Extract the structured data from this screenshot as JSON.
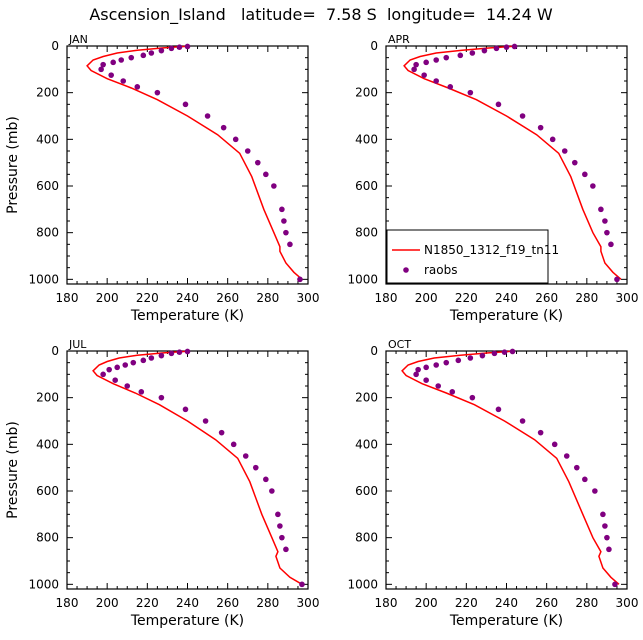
{
  "figure_title": "Ascension_Island   latitude=  7.58 S  longitude=  14.24 W",
  "legend": {
    "model_label": "N1850_1312_f19_tn11",
    "obs_label": "raobs"
  },
  "colors": {
    "model_line": "#ff0000",
    "obs_marker": "#800080",
    "axes": "#000000"
  },
  "chart_data": [
    {
      "type": "line",
      "panel_label": "JAN",
      "xlabel": "Temperature (K)",
      "ylabel": "Pressure (mb)",
      "xlim": [
        180,
        300
      ],
      "ylim": [
        1020,
        0
      ],
      "x_ticks": [
        180,
        200,
        220,
        240,
        260,
        280,
        300
      ],
      "y_ticks": [
        0,
        200,
        400,
        600,
        800,
        1000
      ],
      "model": {
        "name": "N1850_1312_f19_tn11",
        "x": [
          240,
          228,
          215,
          205,
          198,
          193,
          190,
          192,
          200,
          212,
          225,
          240,
          255,
          266,
          272,
          278,
          283,
          286,
          286,
          289,
          293,
          297
        ],
        "y": [
          1,
          8,
          18,
          30,
          45,
          60,
          85,
          105,
          140,
          180,
          230,
          300,
          380,
          460,
          560,
          700,
          800,
          860,
          880,
          930,
          970,
          1000
        ]
      },
      "obs": {
        "name": "raobs",
        "x": [
          240,
          236,
          232,
          227,
          222,
          218,
          212,
          207,
          203,
          198,
          197,
          202,
          208,
          215,
          225,
          239,
          250,
          258,
          264,
          270,
          275,
          279,
          283,
          287,
          288,
          289,
          291,
          296
        ],
        "y": [
          2,
          5,
          10,
          20,
          30,
          40,
          50,
          60,
          70,
          80,
          100,
          125,
          150,
          175,
          200,
          250,
          300,
          350,
          400,
          450,
          500,
          550,
          600,
          700,
          750,
          800,
          850,
          1000
        ]
      }
    },
    {
      "type": "line",
      "panel_label": "APR",
      "xlabel": "Temperature (K)",
      "ylabel": "",
      "xlim": [
        180,
        300
      ],
      "ylim": [
        1020,
        0
      ],
      "x_ticks": [
        180,
        200,
        220,
        240,
        260,
        280,
        300
      ],
      "y_ticks": [
        0,
        200,
        400,
        600,
        800,
        1000
      ],
      "model": {
        "name": "N1850_1312_f19_tn11",
        "x": [
          244,
          232,
          218,
          205,
          197,
          192,
          189,
          191,
          199,
          211,
          225,
          240,
          255,
          266,
          272,
          278,
          283,
          287,
          287,
          289,
          293,
          297
        ],
        "y": [
          1,
          8,
          18,
          30,
          45,
          60,
          85,
          105,
          140,
          180,
          230,
          300,
          380,
          460,
          560,
          700,
          800,
          860,
          880,
          930,
          970,
          1000
        ]
      },
      "obs": {
        "name": "raobs",
        "x": [
          244,
          240,
          235,
          229,
          223,
          217,
          210,
          205,
          200,
          195,
          194,
          199,
          205,
          212,
          222,
          236,
          248,
          257,
          263,
          269,
          274,
          279,
          283,
          287,
          289,
          290,
          292,
          295
        ],
        "y": [
          2,
          5,
          10,
          20,
          30,
          40,
          50,
          60,
          70,
          80,
          100,
          125,
          150,
          175,
          200,
          250,
          300,
          350,
          400,
          450,
          500,
          550,
          600,
          700,
          750,
          800,
          850,
          1000
        ]
      }
    },
    {
      "type": "line",
      "panel_label": "JUL",
      "xlabel": "Temperature (K)",
      "ylabel": "Pressure (mb)",
      "xlim": [
        180,
        300
      ],
      "ylim": [
        1020,
        0
      ],
      "x_ticks": [
        180,
        200,
        220,
        240,
        260,
        280,
        300
      ],
      "y_ticks": [
        0,
        200,
        400,
        600,
        800,
        1000
      ],
      "model": {
        "name": "N1850_1312_f19_tn11",
        "x": [
          240,
          228,
          215,
          206,
          200,
          196,
          193,
          195,
          203,
          214,
          226,
          240,
          254,
          265,
          271,
          277,
          282,
          285,
          284,
          286,
          291,
          297
        ],
        "y": [
          1,
          8,
          18,
          30,
          45,
          60,
          85,
          105,
          140,
          180,
          230,
          300,
          380,
          460,
          560,
          700,
          800,
          860,
          880,
          930,
          970,
          1000
        ]
      },
      "obs": {
        "name": "raobs",
        "x": [
          240,
          236,
          232,
          227,
          222,
          218,
          213,
          209,
          205,
          201,
          198,
          204,
          210,
          217,
          227,
          239,
          249,
          257,
          263,
          269,
          274,
          279,
          282,
          285,
          286,
          287,
          289,
          297
        ],
        "y": [
          2,
          5,
          10,
          20,
          30,
          40,
          50,
          60,
          70,
          80,
          100,
          125,
          150,
          175,
          200,
          250,
          300,
          350,
          400,
          450,
          500,
          550,
          600,
          700,
          750,
          800,
          850,
          1000
        ]
      }
    },
    {
      "type": "line",
      "panel_label": "OCT",
      "xlabel": "Temperature (K)",
      "ylabel": "",
      "xlim": [
        180,
        300
      ],
      "ylim": [
        1020,
        0
      ],
      "x_ticks": [
        180,
        200,
        220,
        240,
        260,
        280,
        300
      ],
      "y_ticks": [
        0,
        200,
        400,
        600,
        800,
        1000
      ],
      "model": {
        "name": "N1850_1312_f19_tn11",
        "x": [
          243,
          231,
          217,
          204,
          196,
          191,
          188,
          190,
          198,
          210,
          224,
          239,
          254,
          265,
          271,
          278,
          283,
          287,
          286,
          288,
          292,
          296
        ],
        "y": [
          1,
          8,
          18,
          30,
          45,
          60,
          85,
          105,
          140,
          180,
          230,
          300,
          380,
          460,
          560,
          700,
          800,
          860,
          880,
          930,
          970,
          1000
        ]
      },
      "obs": {
        "name": "raobs",
        "x": [
          243,
          239,
          234,
          228,
          222,
          216,
          210,
          205,
          200,
          196,
          195,
          200,
          206,
          213,
          223,
          236,
          248,
          257,
          264,
          270,
          275,
          279,
          284,
          288,
          289,
          290,
          291,
          294
        ],
        "y": [
          2,
          5,
          10,
          20,
          30,
          40,
          50,
          60,
          70,
          80,
          100,
          125,
          150,
          175,
          200,
          250,
          300,
          350,
          400,
          450,
          500,
          550,
          600,
          700,
          750,
          800,
          850,
          1000
        ]
      }
    }
  ]
}
